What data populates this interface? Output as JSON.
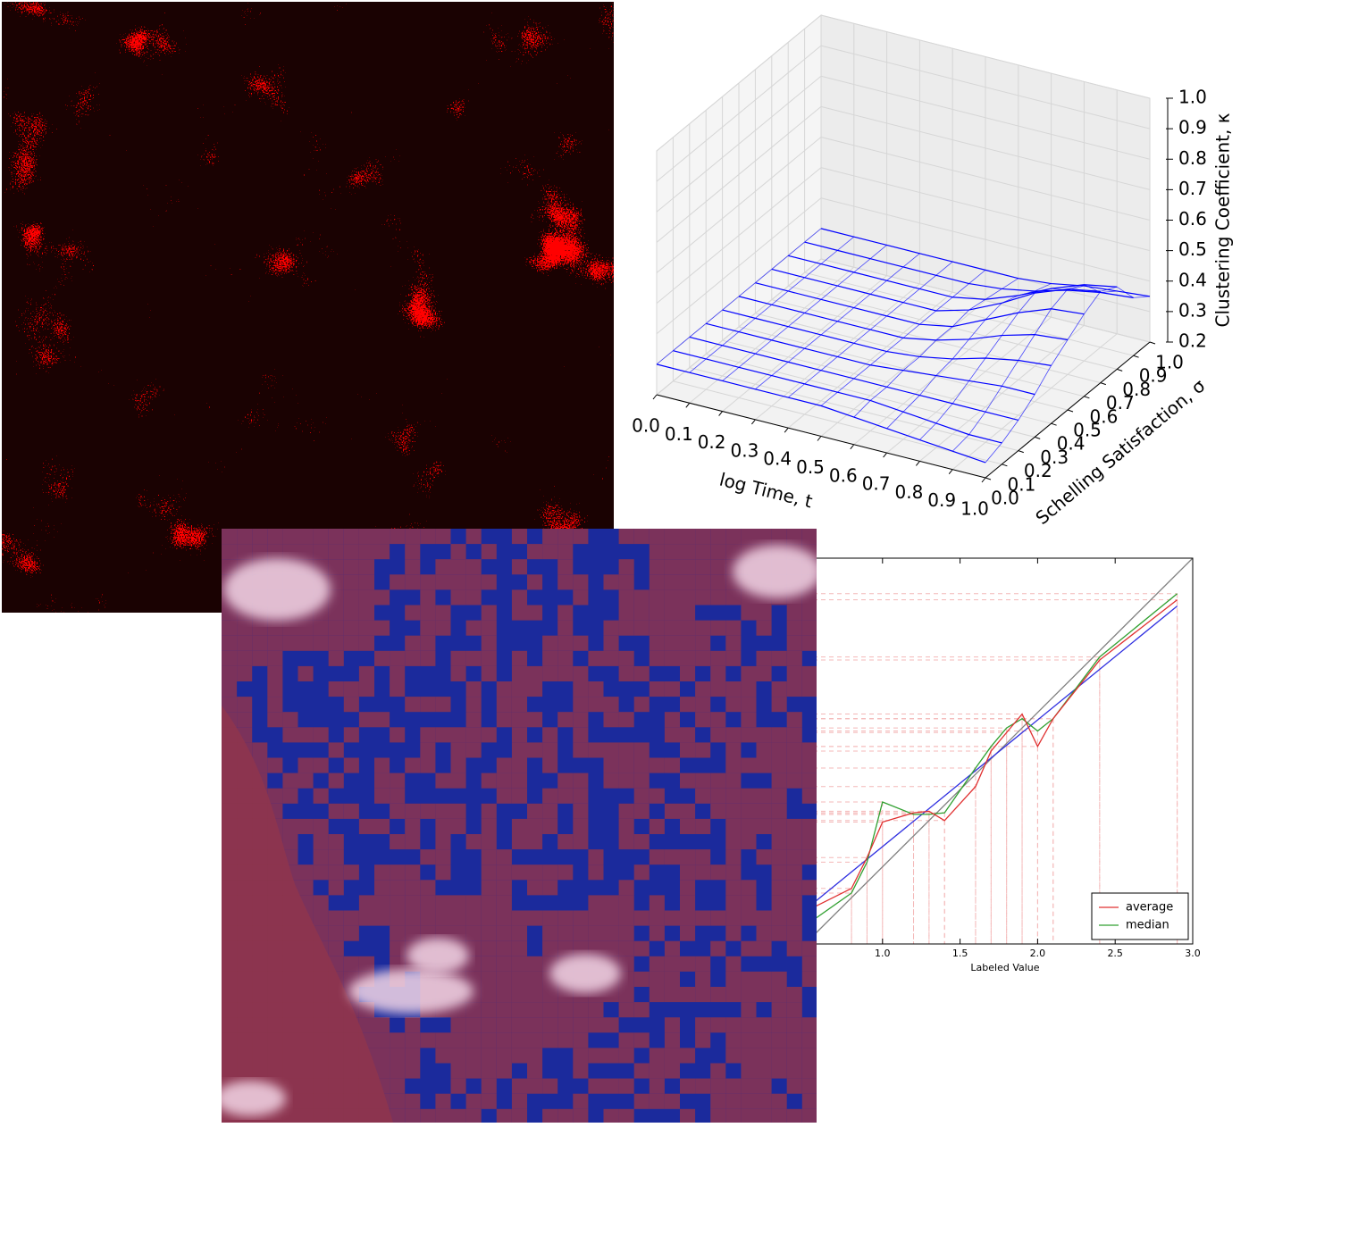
{
  "chart_data": [
    {
      "type": "surface3d",
      "xlabel": "log Time, t",
      "ylabel": "Schelling Satisfaction, σ",
      "zlabel": "Clustering Coefficient, κ",
      "xlim": [
        0,
        1
      ],
      "ylim": [
        0,
        1
      ],
      "zlim": [
        0.2,
        1
      ],
      "xticks": [
        {
          "value": 0,
          "label": "0.0"
        },
        0.1,
        0.2,
        0.3,
        0.4,
        0.5,
        0.6,
        0.7,
        0.8,
        0.9,
        {
          "value": 1,
          "label": "1.0"
        }
      ],
      "yticks": [
        {
          "value": 0,
          "label": "0.0"
        },
        0.1,
        0.2,
        0.3,
        0.4,
        0.5,
        0.6,
        0.7,
        0.8,
        0.9,
        {
          "value": 1,
          "label": "1.0"
        }
      ],
      "zticks": [
        0.2,
        0.3,
        0.4,
        0.5,
        0.6,
        0.7,
        0.8,
        0.9,
        {
          "value": 1,
          "label": "1.0"
        }
      ],
      "color": "#0000ff",
      "x": [
        0,
        0.1,
        0.2,
        0.3,
        0.4,
        0.5,
        0.6,
        0.7,
        0.8,
        0.9,
        1
      ],
      "y": [
        0,
        0.1,
        0.2,
        0.3,
        0.4,
        0.5,
        0.6,
        0.7,
        0.8,
        0.9,
        1
      ],
      "z": [
        [
          0.3,
          0.3,
          0.3,
          0.3,
          0.3,
          0.3,
          0.29,
          0.28,
          0.27,
          0.26,
          0.25
        ],
        [
          0.3,
          0.3,
          0.3,
          0.3,
          0.3,
          0.3,
          0.3,
          0.29,
          0.28,
          0.27,
          0.27
        ],
        [
          0.3,
          0.3,
          0.3,
          0.3,
          0.3,
          0.3,
          0.3,
          0.3,
          0.3,
          0.3,
          0.3
        ],
        [
          0.3,
          0.3,
          0.3,
          0.3,
          0.3,
          0.3,
          0.31,
          0.32,
          0.33,
          0.34,
          0.34
        ],
        [
          0.3,
          0.3,
          0.3,
          0.3,
          0.3,
          0.3,
          0.31,
          0.33,
          0.36,
          0.38,
          0.39
        ],
        [
          0.3,
          0.3,
          0.3,
          0.3,
          0.3,
          0.3,
          0.32,
          0.35,
          0.39,
          0.42,
          0.43
        ],
        [
          0.3,
          0.3,
          0.3,
          0.3,
          0.3,
          0.3,
          0.32,
          0.37,
          0.42,
          0.46,
          0.47
        ],
        [
          0.3,
          0.3,
          0.3,
          0.3,
          0.3,
          0.3,
          0.33,
          0.38,
          0.44,
          0.48,
          0.5
        ],
        [
          0.3,
          0.3,
          0.3,
          0.3,
          0.3,
          0.3,
          0.32,
          0.36,
          0.41,
          0.45,
          0.47
        ],
        [
          0.3,
          0.3,
          0.3,
          0.3,
          0.3,
          0.3,
          0.31,
          0.33,
          0.36,
          0.38,
          0.39
        ],
        [
          0.3,
          0.3,
          0.3,
          0.3,
          0.3,
          0.3,
          0.3,
          0.31,
          0.33,
          0.34,
          0.35
        ]
      ]
    },
    {
      "type": "line",
      "xlabel": "Labeled Value",
      "xlim": [
        0.5,
        3
      ],
      "ylim": [
        0.5,
        3
      ],
      "xticks": [
        {
          "value": 1,
          "label": "1.0"
        },
        1.5,
        {
          "value": 2,
          "label": "2.0"
        },
        2.5,
        {
          "value": 3,
          "label": "3.0"
        }
      ],
      "legend": "lower right",
      "series": [
        {
          "name": "average",
          "color": "#e03030",
          "x": [
            0.56,
            0.8,
            0.9,
            1,
            1.2,
            1.3,
            1.4,
            1.6,
            1.7,
            1.8,
            1.9,
            2,
            2.1,
            2.4,
            2.9
          ],
          "values": [
            0.74,
            0.86,
            1.06,
            1.29,
            1.35,
            1.36,
            1.3,
            1.52,
            1.75,
            1.87,
            1.99,
            1.78,
            1.96,
            2.34,
            2.73
          ]
        },
        {
          "name": "median",
          "color": "#30a030",
          "x": [
            0.56,
            0.8,
            0.9,
            1,
            1.2,
            1.3,
            1.4,
            1.6,
            1.7,
            1.8,
            1.9,
            2,
            2.1,
            2.4,
            2.9
          ],
          "values": [
            0.66,
            0.83,
            1.03,
            1.42,
            1.34,
            1.34,
            1.35,
            1.64,
            1.78,
            1.9,
            1.96,
            1.88,
            1.96,
            2.36,
            2.77
          ]
        },
        {
          "color": "#3030e0",
          "x": [
            0.56,
            2.9
          ],
          "values": [
            0.77,
            2.69
          ]
        },
        {
          "color": "#808080",
          "x": [
            0.5,
            3
          ],
          "values": [
            0.5,
            3
          ]
        }
      ]
    }
  ]
}
